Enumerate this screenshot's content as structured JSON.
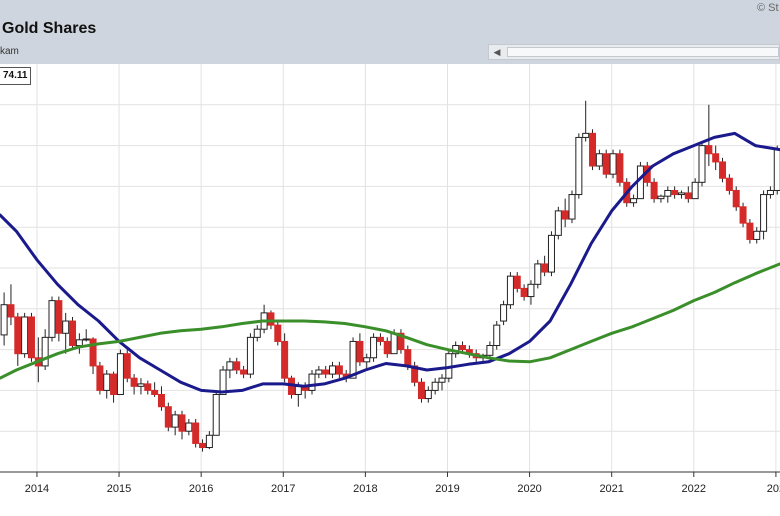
{
  "header": {
    "title": "Gold Shares",
    "subtitle": "kam",
    "copyright": "© St"
  },
  "scrollbar": {
    "left_arrow_icon": "triangle-left"
  },
  "price_label": "74.11",
  "chart_data": {
    "type": "candlestick",
    "interval": "monthly",
    "x_axis_labels": [
      "2014",
      "2015",
      "2016",
      "2017",
      "2018",
      "2019",
      "2020",
      "2021",
      "2022",
      "202"
    ],
    "x_range": [
      2013.55,
      2023.05
    ],
    "y_range": [
      10,
      60
    ],
    "grid": true,
    "colors": {
      "up": "#ffffff",
      "down": "#d42a2a",
      "wick": "#222222",
      "short_ma": "#1a1a8c",
      "long_ma": "#3a8f2a",
      "grid": "#e2e2e2"
    },
    "candles": [
      [
        26.8,
        32.0,
        25.5,
        30.5
      ],
      [
        30.5,
        33.0,
        28.0,
        29.0
      ],
      [
        29.0,
        29.5,
        23.0,
        24.5
      ],
      [
        24.5,
        29.5,
        24.0,
        29.0
      ],
      [
        29.0,
        29.5,
        23.5,
        24.0
      ],
      [
        24.0,
        26.5,
        21.0,
        23.0
      ],
      [
        23.0,
        27.5,
        22.5,
        26.5
      ],
      [
        26.5,
        31.5,
        26.0,
        31.0
      ],
      [
        31.0,
        31.5,
        26.0,
        27.0
      ],
      [
        27.0,
        29.5,
        24.5,
        28.5
      ],
      [
        28.5,
        29.0,
        25.0,
        25.5
      ],
      [
        25.5,
        27.0,
        24.5,
        26.2
      ],
      [
        26.2,
        27.5,
        26.0,
        26.3
      ],
      [
        26.3,
        26.5,
        22.0,
        23.0
      ],
      [
        23.0,
        23.5,
        19.5,
        20.0
      ],
      [
        20.0,
        22.5,
        19.0,
        22.0
      ],
      [
        22.0,
        22.3,
        18.5,
        19.5
      ],
      [
        19.5,
        25.0,
        19.5,
        24.5
      ],
      [
        24.5,
        25.0,
        21.0,
        21.5
      ],
      [
        21.5,
        22.0,
        19.5,
        20.5
      ],
      [
        20.5,
        21.5,
        19.5,
        20.8
      ],
      [
        20.8,
        21.2,
        19.5,
        20.0
      ],
      [
        20.0,
        21.0,
        19.2,
        19.5
      ],
      [
        19.5,
        20.5,
        17.5,
        18.0
      ],
      [
        18.0,
        18.5,
        15.0,
        15.5
      ],
      [
        15.5,
        17.5,
        14.5,
        17.0
      ],
      [
        17.0,
        17.5,
        14.0,
        15.0
      ],
      [
        15.0,
        16.5,
        14.5,
        16.0
      ],
      [
        16.0,
        16.5,
        13.0,
        13.5
      ],
      [
        13.5,
        14.0,
        12.5,
        13.0
      ],
      [
        13.0,
        15.0,
        12.8,
        14.5
      ],
      [
        14.5,
        20.0,
        14.5,
        19.5
      ],
      [
        19.5,
        23.0,
        19.5,
        22.5
      ],
      [
        22.5,
        24.0,
        21.5,
        23.5
      ],
      [
        23.5,
        24.0,
        22.0,
        22.5
      ],
      [
        22.5,
        23.0,
        21.5,
        22.0
      ],
      [
        22.0,
        27.0,
        21.5,
        26.5
      ],
      [
        26.5,
        28.0,
        26.0,
        27.5
      ],
      [
        27.5,
        30.5,
        27.0,
        29.5
      ],
      [
        29.5,
        29.8,
        27.5,
        28.0
      ],
      [
        28.0,
        28.5,
        25.5,
        26.0
      ],
      [
        26.0,
        27.0,
        21.0,
        21.5
      ],
      [
        21.5,
        21.8,
        19.0,
        19.5
      ],
      [
        19.5,
        21.0,
        18.0,
        20.5
      ],
      [
        20.5,
        21.0,
        19.0,
        20.0
      ],
      [
        20.0,
        22.5,
        19.5,
        22.0
      ],
      [
        22.0,
        23.0,
        21.5,
        22.5
      ],
      [
        22.5,
        23.0,
        21.5,
        22.0
      ],
      [
        22.0,
        23.5,
        21.5,
        23.0
      ],
      [
        23.0,
        23.5,
        21.5,
        22.0
      ],
      [
        22.0,
        22.5,
        21.0,
        21.5
      ],
      [
        21.5,
        26.5,
        21.5,
        26.0
      ],
      [
        26.0,
        27.0,
        23.0,
        23.5
      ],
      [
        23.5,
        24.5,
        22.5,
        24.0
      ],
      [
        24.0,
        27.0,
        23.5,
        26.5
      ],
      [
        26.5,
        27.0,
        25.5,
        26.0
      ],
      [
        26.0,
        26.5,
        24.0,
        24.5
      ],
      [
        24.5,
        27.5,
        24.5,
        27.0
      ],
      [
        27.0,
        27.5,
        24.5,
        25.0
      ],
      [
        25.0,
        25.5,
        22.5,
        23.0
      ],
      [
        23.0,
        23.5,
        20.5,
        21.0
      ],
      [
        21.0,
        21.5,
        18.5,
        19.0
      ],
      [
        19.0,
        20.5,
        18.5,
        20.0
      ],
      [
        20.0,
        21.5,
        19.5,
        21.0
      ],
      [
        21.0,
        22.0,
        20.0,
        21.5
      ],
      [
        21.5,
        25.0,
        21.0,
        24.5
      ],
      [
        24.5,
        26.0,
        24.0,
        25.5
      ],
      [
        25.5,
        26.0,
        24.5,
        25.0
      ],
      [
        25.0,
        25.5,
        24.0,
        24.5
      ],
      [
        24.5,
        25.0,
        23.5,
        24.0
      ],
      [
        24.0,
        24.5,
        23.5,
        24.3
      ],
      [
        24.3,
        26.0,
        24.0,
        25.5
      ],
      [
        25.5,
        28.5,
        25.0,
        28.0
      ],
      [
        28.5,
        31.0,
        28.0,
        30.5
      ],
      [
        30.5,
        34.5,
        30.0,
        34.0
      ],
      [
        34.0,
        34.5,
        32.0,
        32.5
      ],
      [
        32.5,
        33.0,
        31.0,
        31.5
      ],
      [
        31.5,
        33.5,
        30.5,
        33.0
      ],
      [
        33.0,
        36.0,
        32.5,
        35.5
      ],
      [
        35.5,
        36.5,
        34.0,
        34.5
      ],
      [
        34.5,
        39.5,
        34.0,
        39.0
      ],
      [
        39.0,
        42.5,
        38.5,
        42.0
      ],
      [
        42.0,
        43.5,
        40.0,
        41.0
      ],
      [
        41.0,
        44.5,
        40.5,
        44.0
      ],
      [
        44.0,
        51.5,
        43.5,
        51.0
      ],
      [
        51.0,
        55.5,
        50.5,
        51.5
      ],
      [
        51.5,
        52.0,
        47.0,
        47.5
      ],
      [
        47.5,
        49.5,
        47.0,
        49.0
      ],
      [
        49.0,
        49.5,
        46.0,
        46.5
      ],
      [
        46.5,
        49.5,
        46.0,
        49.0
      ],
      [
        49.0,
        49.5,
        45.0,
        45.5
      ],
      [
        45.5,
        46.0,
        42.5,
        43.0
      ],
      [
        43.0,
        44.0,
        42.5,
        43.5
      ],
      [
        43.5,
        48.0,
        43.5,
        47.5
      ],
      [
        47.5,
        48.0,
        45.0,
        45.5
      ],
      [
        45.5,
        46.0,
        43.0,
        43.5
      ],
      [
        43.5,
        44.0,
        43.0,
        43.8
      ],
      [
        43.8,
        45.0,
        43.0,
        44.5
      ],
      [
        44.5,
        45.0,
        43.5,
        44.0
      ],
      [
        44.0,
        44.5,
        43.5,
        44.2
      ],
      [
        44.2,
        45.0,
        43.0,
        43.5
      ],
      [
        43.5,
        46.0,
        43.5,
        45.5
      ],
      [
        45.5,
        50.5,
        45.0,
        50.0
      ],
      [
        50.0,
        55.0,
        47.5,
        49.0
      ],
      [
        49.0,
        50.0,
        47.0,
        48.0
      ],
      [
        48.0,
        48.5,
        45.5,
        46.0
      ],
      [
        46.0,
        46.5,
        44.0,
        44.5
      ],
      [
        44.5,
        45.0,
        42.0,
        42.5
      ],
      [
        42.5,
        43.0,
        40.0,
        40.5
      ],
      [
        40.5,
        41.0,
        38.0,
        38.5
      ],
      [
        38.5,
        40.0,
        38.0,
        39.5
      ],
      [
        39.5,
        44.5,
        38.5,
        44.0
      ],
      [
        44.0,
        45.0,
        43.5,
        44.5
      ],
      [
        44.5,
        50.0,
        44.0,
        49.5
      ]
    ],
    "series": [
      {
        "kind": "moving-average",
        "color": "#1a1a8c",
        "points": [
          [
            2013.55,
            41.5
          ],
          [
            2013.75,
            39.5
          ],
          [
            2014.0,
            36.0
          ],
          [
            2014.25,
            33.0
          ],
          [
            2014.5,
            30.5
          ],
          [
            2014.75,
            28.5
          ],
          [
            2015.0,
            26.0
          ],
          [
            2015.25,
            24.0
          ],
          [
            2015.5,
            22.5
          ],
          [
            2015.75,
            21.0
          ],
          [
            2016.0,
            20.0
          ],
          [
            2016.25,
            19.8
          ],
          [
            2016.5,
            20.0
          ],
          [
            2016.75,
            20.8
          ],
          [
            2017.0,
            20.8
          ],
          [
            2017.25,
            20.5
          ],
          [
            2017.5,
            20.8
          ],
          [
            2017.75,
            21.5
          ],
          [
            2018.0,
            22.5
          ],
          [
            2018.25,
            23.3
          ],
          [
            2018.5,
            23.0
          ],
          [
            2018.75,
            22.5
          ],
          [
            2019.0,
            22.8
          ],
          [
            2019.25,
            23.2
          ],
          [
            2019.5,
            23.5
          ],
          [
            2019.75,
            24.5
          ],
          [
            2020.0,
            26.0
          ],
          [
            2020.25,
            28.5
          ],
          [
            2020.5,
            33.0
          ],
          [
            2020.75,
            38.0
          ],
          [
            2021.0,
            42.0
          ],
          [
            2021.25,
            45.0
          ],
          [
            2021.5,
            47.5
          ],
          [
            2021.75,
            49.0
          ],
          [
            2022.0,
            50.0
          ],
          [
            2022.25,
            51.0
          ],
          [
            2022.5,
            51.5
          ],
          [
            2022.75,
            50.0
          ],
          [
            2023.05,
            49.5
          ]
        ]
      },
      {
        "kind": "moving-average",
        "color": "#3a8f2a",
        "points": [
          [
            2013.55,
            21.5
          ],
          [
            2013.75,
            22.5
          ],
          [
            2014.0,
            23.5
          ],
          [
            2014.25,
            24.5
          ],
          [
            2014.5,
            25.3
          ],
          [
            2014.75,
            25.7
          ],
          [
            2015.0,
            26.0
          ],
          [
            2015.25,
            26.5
          ],
          [
            2015.5,
            27.0
          ],
          [
            2015.75,
            27.3
          ],
          [
            2016.0,
            27.5
          ],
          [
            2016.25,
            27.8
          ],
          [
            2016.5,
            28.2
          ],
          [
            2016.75,
            28.5
          ],
          [
            2017.0,
            28.5
          ],
          [
            2017.25,
            28.5
          ],
          [
            2017.5,
            28.4
          ],
          [
            2017.75,
            28.2
          ],
          [
            2018.0,
            27.8
          ],
          [
            2018.25,
            27.3
          ],
          [
            2018.5,
            26.5
          ],
          [
            2018.75,
            25.6
          ],
          [
            2019.0,
            25.0
          ],
          [
            2019.25,
            24.5
          ],
          [
            2019.5,
            24.0
          ],
          [
            2019.75,
            23.6
          ],
          [
            2020.0,
            23.5
          ],
          [
            2020.25,
            24.0
          ],
          [
            2020.5,
            25.0
          ],
          [
            2020.75,
            26.0
          ],
          [
            2021.0,
            27.0
          ],
          [
            2021.25,
            27.8
          ],
          [
            2021.5,
            28.8
          ],
          [
            2021.75,
            29.8
          ],
          [
            2022.0,
            31.0
          ],
          [
            2022.25,
            32.0
          ],
          [
            2022.5,
            33.2
          ],
          [
            2022.75,
            34.3
          ],
          [
            2023.05,
            35.5
          ]
        ]
      }
    ]
  }
}
